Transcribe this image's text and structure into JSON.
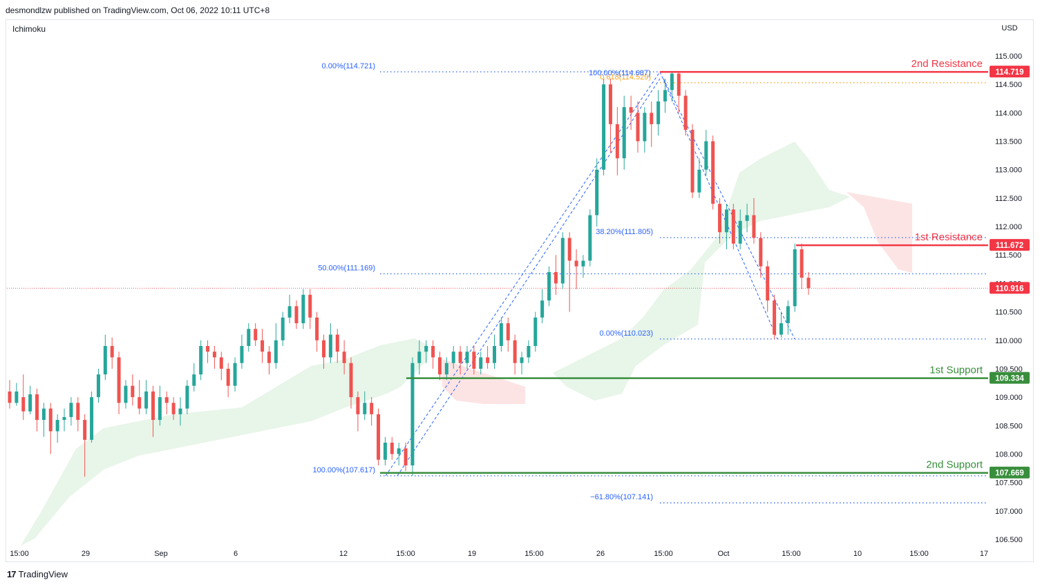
{
  "header": {
    "published": "desmondlzw published on TradingView.com, Oct 06, 2022 10:11 UTC+8"
  },
  "indicator_name": "Ichimoku",
  "currency": "USD",
  "footer": {
    "logo_mark": "17",
    "brand": "TradingView"
  },
  "colors": {
    "up": "#26a69a",
    "down": "#ef5350",
    "resistance": "#f23645",
    "support": "#388e3c",
    "fib": "#2962ff",
    "fib_orange": "#f7a21b",
    "cloud_green": "#e8f5e9",
    "cloud_red": "#fde4e4",
    "current_price": "#f23645"
  },
  "chart_data": {
    "type": "candlestick",
    "symbol_currency": "USD",
    "y_ticks": [
      "115.000",
      "114.500",
      "114.000",
      "113.500",
      "113.000",
      "112.500",
      "112.000",
      "111.500",
      "111.000",
      "110.500",
      "110.000",
      "109.500",
      "109.000",
      "108.500",
      "108.000",
      "107.500",
      "107.000",
      "106.500"
    ],
    "ylim": [
      106.3,
      115.45
    ],
    "x_ticks": [
      "15:00",
      "29",
      "Sep",
      "6",
      "12",
      "15:00",
      "19",
      "15:00",
      "26",
      "15:00",
      "Oct",
      "15:00",
      "10",
      "15:00",
      "17"
    ],
    "price_labels": [
      {
        "text": "114.719",
        "value": 114.719,
        "kind": "resistance"
      },
      {
        "text": "111.672",
        "value": 111.672,
        "kind": "resistance"
      },
      {
        "text": "110.916",
        "value": 110.916,
        "kind": "current"
      },
      {
        "text": "109.334",
        "value": 109.334,
        "kind": "support"
      },
      {
        "text": "107.669",
        "value": 107.669,
        "kind": "support"
      }
    ],
    "levels": [
      {
        "name": "2nd Resistance",
        "value": 114.719,
        "kind": "resistance"
      },
      {
        "name": "1st Resistance",
        "value": 111.672,
        "kind": "resistance"
      },
      {
        "name": "1st Support",
        "value": 109.334,
        "kind": "support"
      },
      {
        "name": "2nd Support",
        "value": 107.669,
        "kind": "support"
      }
    ],
    "fib_labels": [
      {
        "text": "0.00%(114.721)",
        "value": 114.721,
        "color": "blue"
      },
      {
        "text": "100.00%(114.687)",
        "value": 114.687,
        "color": "blue"
      },
      {
        "text": "0.618(114.529)",
        "value": 114.529,
        "color": "orange"
      },
      {
        "text": "50.00%(111.169)",
        "value": 111.169,
        "color": "blue"
      },
      {
        "text": "38.20%(111.805)",
        "value": 111.805,
        "color": "blue"
      },
      {
        "text": "0.00%(110.023)",
        "value": 110.023,
        "color": "blue"
      },
      {
        "text": "100.00%(107.617)",
        "value": 107.617,
        "color": "blue"
      },
      {
        "text": "−61.80%(107.141)",
        "value": 107.141,
        "color": "blue"
      }
    ],
    "current_price": 110.916,
    "candles": [
      [
        109.1,
        108.9,
        109.3,
        108.8
      ],
      [
        108.9,
        109.1,
        109.25,
        108.85
      ],
      [
        109.0,
        108.75,
        109.4,
        108.6
      ],
      [
        108.75,
        109.05,
        109.2,
        108.7
      ],
      [
        109.05,
        108.6,
        109.15,
        108.4
      ],
      [
        108.6,
        108.8,
        108.9,
        108.3
      ],
      [
        108.8,
        108.4,
        108.9,
        108.0
      ],
      [
        108.4,
        108.6,
        108.7,
        108.2
      ],
      [
        108.6,
        108.65,
        108.8,
        108.4
      ],
      [
        108.65,
        108.9,
        109.0,
        108.5
      ],
      [
        108.9,
        108.6,
        109.0,
        108.4
      ],
      [
        108.6,
        108.25,
        108.7,
        107.6
      ],
      [
        108.25,
        109.0,
        109.1,
        108.2
      ],
      [
        109.0,
        109.4,
        109.5,
        108.9
      ],
      [
        109.4,
        109.9,
        110.1,
        109.3
      ],
      [
        109.9,
        109.7,
        110.05,
        109.5
      ],
      [
        109.7,
        108.9,
        109.8,
        108.7
      ],
      [
        108.9,
        109.2,
        109.3,
        108.8
      ],
      [
        109.2,
        109.0,
        109.4,
        108.85
      ],
      [
        109.0,
        108.8,
        109.3,
        108.7
      ],
      [
        108.8,
        109.1,
        109.3,
        108.7
      ],
      [
        109.1,
        108.6,
        109.2,
        108.3
      ],
      [
        108.6,
        109.0,
        109.2,
        108.5
      ],
      [
        109.0,
        108.9,
        109.1,
        108.7
      ],
      [
        108.9,
        108.7,
        109.0,
        108.6
      ],
      [
        108.7,
        108.8,
        109.0,
        108.5
      ],
      [
        108.8,
        109.2,
        109.3,
        108.7
      ],
      [
        109.2,
        109.4,
        109.6,
        109.1
      ],
      [
        109.4,
        109.9,
        110.0,
        109.3
      ],
      [
        109.9,
        109.8,
        110.0,
        109.6
      ],
      [
        109.8,
        109.7,
        109.9,
        109.5
      ],
      [
        109.7,
        109.5,
        109.8,
        109.3
      ],
      [
        109.5,
        109.2,
        109.6,
        109.0
      ],
      [
        109.2,
        109.6,
        109.7,
        109.1
      ],
      [
        109.6,
        109.9,
        110.1,
        109.5
      ],
      [
        109.9,
        110.2,
        110.3,
        109.8
      ],
      [
        110.2,
        110.0,
        110.3,
        109.9
      ],
      [
        110.0,
        109.8,
        110.2,
        109.6
      ],
      [
        109.8,
        109.6,
        109.9,
        109.4
      ],
      [
        109.6,
        110.0,
        110.3,
        109.5
      ],
      [
        110.0,
        110.4,
        110.5,
        109.9
      ],
      [
        110.4,
        110.6,
        110.8,
        110.3
      ],
      [
        110.6,
        110.3,
        110.7,
        110.2
      ],
      [
        110.3,
        110.8,
        110.9,
        110.2
      ],
      [
        110.8,
        110.4,
        110.9,
        110.2
      ],
      [
        110.4,
        110.0,
        110.5,
        109.8
      ],
      [
        110.0,
        109.7,
        110.1,
        109.5
      ],
      [
        109.7,
        110.1,
        110.3,
        109.6
      ],
      [
        110.1,
        109.8,
        110.2,
        109.6
      ],
      [
        109.8,
        109.6,
        110.0,
        109.4
      ],
      [
        109.6,
        109.0,
        109.7,
        108.8
      ],
      [
        109.0,
        108.7,
        109.1,
        108.4
      ],
      [
        108.7,
        108.9,
        109.1,
        108.6
      ],
      [
        108.9,
        108.7,
        109.0,
        108.5
      ],
      [
        108.7,
        107.9,
        108.8,
        107.8
      ],
      [
        107.9,
        108.2,
        108.3,
        107.8
      ],
      [
        108.2,
        108.0,
        108.3,
        107.9
      ],
      [
        108.0,
        108.1,
        108.2,
        107.8
      ],
      [
        108.1,
        107.8,
        108.2,
        107.7
      ],
      [
        107.8,
        109.6,
        109.7,
        107.62
      ],
      [
        109.6,
        109.8,
        110.0,
        109.4
      ],
      [
        109.8,
        109.9,
        110.0,
        109.6
      ],
      [
        109.9,
        109.7,
        110.0,
        109.5
      ],
      [
        109.7,
        109.4,
        109.8,
        109.3
      ],
      [
        109.4,
        109.6,
        109.7,
        109.3
      ],
      [
        109.6,
        109.8,
        109.9,
        109.5
      ],
      [
        109.8,
        109.6,
        109.9,
        109.4
      ],
      [
        109.6,
        109.8,
        109.9,
        109.5
      ],
      [
        109.8,
        109.5,
        109.9,
        109.4
      ],
      [
        109.5,
        109.7,
        109.8,
        109.4
      ],
      [
        109.7,
        109.6,
        109.9,
        109.5
      ],
      [
        109.6,
        109.9,
        110.1,
        109.5
      ],
      [
        109.9,
        110.3,
        110.4,
        109.8
      ],
      [
        110.3,
        110.0,
        110.4,
        109.8
      ],
      [
        110.0,
        109.6,
        110.1,
        109.4
      ],
      [
        109.6,
        109.7,
        109.8,
        109.4
      ],
      [
        109.7,
        109.9,
        110.0,
        109.6
      ],
      [
        109.9,
        110.4,
        110.5,
        109.8
      ],
      [
        110.4,
        110.7,
        110.9,
        110.3
      ],
      [
        110.7,
        111.2,
        111.3,
        110.6
      ],
      [
        111.2,
        111.0,
        111.5,
        110.8
      ],
      [
        111.0,
        111.8,
        111.9,
        110.9
      ],
      [
        111.8,
        111.4,
        111.9,
        110.5
      ],
      [
        111.4,
        111.3,
        111.6,
        110.9
      ],
      [
        111.3,
        111.4,
        111.5,
        111.1
      ],
      [
        111.4,
        112.2,
        112.3,
        111.3
      ],
      [
        112.2,
        113.0,
        113.2,
        112.0
      ],
      [
        113.0,
        114.5,
        114.6,
        112.9
      ],
      [
        114.5,
        113.8,
        114.6,
        113.3
      ],
      [
        113.8,
        113.2,
        114.1,
        112.9
      ],
      [
        113.2,
        114.1,
        114.3,
        113.0
      ],
      [
        114.1,
        114.0,
        114.3,
        113.7
      ],
      [
        114.0,
        113.5,
        114.2,
        113.3
      ],
      [
        113.5,
        114.0,
        114.1,
        113.3
      ],
      [
        114.0,
        113.8,
        114.2,
        113.4
      ],
      [
        113.8,
        114.2,
        114.4,
        113.6
      ],
      [
        114.2,
        114.4,
        114.6,
        114.0
      ],
      [
        114.4,
        114.69,
        114.72,
        114.2
      ],
      [
        114.69,
        114.3,
        114.72,
        114.0
      ],
      [
        114.3,
        113.7,
        114.4,
        113.6
      ],
      [
        113.7,
        112.6,
        113.8,
        112.5
      ],
      [
        112.6,
        113.0,
        113.2,
        112.5
      ],
      [
        113.0,
        113.5,
        113.7,
        112.9
      ],
      [
        113.5,
        112.4,
        113.6,
        112.3
      ],
      [
        112.4,
        111.9,
        112.5,
        111.7
      ],
      [
        111.9,
        112.3,
        112.4,
        111.6
      ],
      [
        112.3,
        111.7,
        112.4,
        111.6
      ],
      [
        111.7,
        112.1,
        112.3,
        111.6
      ],
      [
        112.1,
        112.2,
        112.4,
        111.9
      ],
      [
        112.2,
        111.8,
        112.5,
        111.7
      ],
      [
        111.8,
        111.3,
        111.9,
        111.1
      ],
      [
        111.3,
        110.7,
        111.4,
        110.5
      ],
      [
        110.7,
        110.1,
        110.8,
        110.02
      ],
      [
        110.1,
        110.3,
        110.5,
        110.05
      ],
      [
        110.3,
        110.6,
        110.7,
        110.1
      ],
      [
        110.6,
        111.6,
        111.7,
        110.5
      ],
      [
        111.6,
        111.1,
        111.7,
        110.9
      ],
      [
        111.1,
        110.916,
        111.2,
        110.8
      ]
    ]
  }
}
